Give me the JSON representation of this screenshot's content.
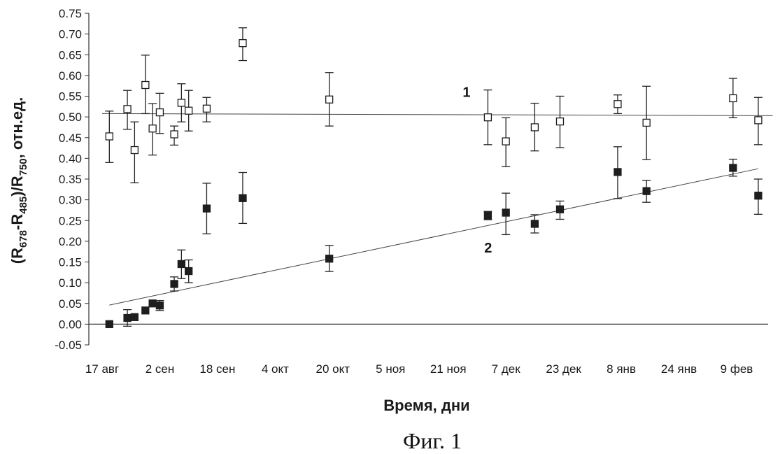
{
  "chart_data": {
    "type": "scatter",
    "caption": "Фиг. 1",
    "xlabel": "Время, дни",
    "ylabel": "(R678-R485)/R750, отн.ед.",
    "ylabel_parts": {
      "open": "(R",
      "s1": "678",
      "mid": "-R",
      "s2": "485",
      "mid2": ")/R",
      "s3": "750",
      "tail": ", отн.ед."
    },
    "x_origin_date": "17 авг",
    "x_ticks": [
      {
        "day": 0,
        "label": "17 авг"
      },
      {
        "day": 16,
        "label": "2 сен"
      },
      {
        "day": 32,
        "label": "18 сен"
      },
      {
        "day": 48,
        "label": "4 окт"
      },
      {
        "day": 64,
        "label": "20 окт"
      },
      {
        "day": 80,
        "label": "5 ноя"
      },
      {
        "day": 96,
        "label": "21 ноя"
      },
      {
        "day": 112,
        "label": "7 дек"
      },
      {
        "day": 128,
        "label": "23 дек"
      },
      {
        "day": 144,
        "label": "8 янв"
      },
      {
        "day": 160,
        "label": "24 янв"
      },
      {
        "day": 176,
        "label": "9 фев"
      }
    ],
    "xlim": [
      0,
      186
    ],
    "ylim": [
      -0.05,
      0.75
    ],
    "y_ticks": [
      "-0.05",
      "0.00",
      "0.05",
      "0.10",
      "0.15",
      "0.20",
      "0.25",
      "0.30",
      "0.35",
      "0.40",
      "0.45",
      "0.50",
      "0.55",
      "0.60",
      "0.65",
      "0.70",
      "0.75"
    ],
    "series": [
      {
        "name": "1",
        "marker": "open-square",
        "trend": {
          "x": [
            0,
            186
          ],
          "y": [
            0.508,
            0.503
          ]
        },
        "label_pos": {
          "day": 100,
          "y": 0.56
        },
        "points": [
          {
            "x": 2,
            "y": 0.453,
            "lo": 0.39,
            "hi": 0.514
          },
          {
            "x": 7,
            "y": 0.519,
            "lo": 0.47,
            "hi": 0.564
          },
          {
            "x": 9,
            "y": 0.42,
            "lo": 0.341,
            "hi": 0.488
          },
          {
            "x": 12,
            "y": 0.577,
            "lo": 0.508,
            "hi": 0.649
          },
          {
            "x": 14,
            "y": 0.472,
            "lo": 0.408,
            "hi": 0.532
          },
          {
            "x": 16,
            "y": 0.511,
            "lo": 0.46,
            "hi": 0.557
          },
          {
            "x": 20,
            "y": 0.458,
            "lo": 0.432,
            "hi": 0.478
          },
          {
            "x": 22,
            "y": 0.534,
            "lo": 0.488,
            "hi": 0.58
          },
          {
            "x": 24,
            "y": 0.515,
            "lo": 0.466,
            "hi": 0.564
          },
          {
            "x": 29,
            "y": 0.52,
            "lo": 0.488,
            "hi": 0.547
          },
          {
            "x": 39,
            "y": 0.678,
            "lo": 0.636,
            "hi": 0.715
          },
          {
            "x": 63,
            "y": 0.542,
            "lo": 0.478,
            "hi": 0.607
          },
          {
            "x": 107,
            "y": 0.499,
            "lo": 0.433,
            "hi": 0.565
          },
          {
            "x": 112,
            "y": 0.441,
            "lo": 0.38,
            "hi": 0.498
          },
          {
            "x": 120,
            "y": 0.475,
            "lo": 0.418,
            "hi": 0.533
          },
          {
            "x": 127,
            "y": 0.489,
            "lo": 0.426,
            "hi": 0.55
          },
          {
            "x": 143,
            "y": 0.531,
            "lo": 0.508,
            "hi": 0.553
          },
          {
            "x": 151,
            "y": 0.486,
            "lo": 0.397,
            "hi": 0.574
          },
          {
            "x": 175,
            "y": 0.545,
            "lo": 0.498,
            "hi": 0.593
          },
          {
            "x": 182,
            "y": 0.492,
            "lo": 0.433,
            "hi": 0.547
          }
        ]
      },
      {
        "name": "2",
        "marker": "filled-square",
        "trend": {
          "x": [
            2,
            182
          ],
          "y": [
            0.046,
            0.375
          ]
        },
        "label_pos": {
          "day": 106,
          "y": 0.185
        },
        "points": [
          {
            "x": 2,
            "y": 0.0
          },
          {
            "x": 7,
            "y": 0.015,
            "lo": -0.005,
            "hi": 0.035
          },
          {
            "x": 9,
            "y": 0.017
          },
          {
            "x": 12,
            "y": 0.033
          },
          {
            "x": 14,
            "y": 0.05
          },
          {
            "x": 16,
            "y": 0.045,
            "lo": 0.033,
            "hi": 0.057
          },
          {
            "x": 20,
            "y": 0.097,
            "lo": 0.08,
            "hi": 0.114
          },
          {
            "x": 22,
            "y": 0.145,
            "lo": 0.11,
            "hi": 0.179
          },
          {
            "x": 24,
            "y": 0.128,
            "lo": 0.1,
            "hi": 0.155
          },
          {
            "x": 29,
            "y": 0.279,
            "lo": 0.218,
            "hi": 0.34
          },
          {
            "x": 39,
            "y": 0.304,
            "lo": 0.243,
            "hi": 0.366
          },
          {
            "x": 63,
            "y": 0.158,
            "lo": 0.127,
            "hi": 0.19
          },
          {
            "x": 107,
            "y": 0.262,
            "lo": 0.252,
            "hi": 0.272
          },
          {
            "x": 112,
            "y": 0.269,
            "lo": 0.216,
            "hi": 0.316
          },
          {
            "x": 120,
            "y": 0.242,
            "lo": 0.22,
            "hi": 0.264
          },
          {
            "x": 127,
            "y": 0.277,
            "lo": 0.253,
            "hi": 0.297
          },
          {
            "x": 143,
            "y": 0.367,
            "lo": 0.303,
            "hi": 0.428
          },
          {
            "x": 151,
            "y": 0.321,
            "lo": 0.294,
            "hi": 0.347
          },
          {
            "x": 175,
            "y": 0.377,
            "lo": 0.357,
            "hi": 0.398
          },
          {
            "x": 182,
            "y": 0.31,
            "lo": 0.265,
            "hi": 0.35
          }
        ]
      }
    ]
  }
}
